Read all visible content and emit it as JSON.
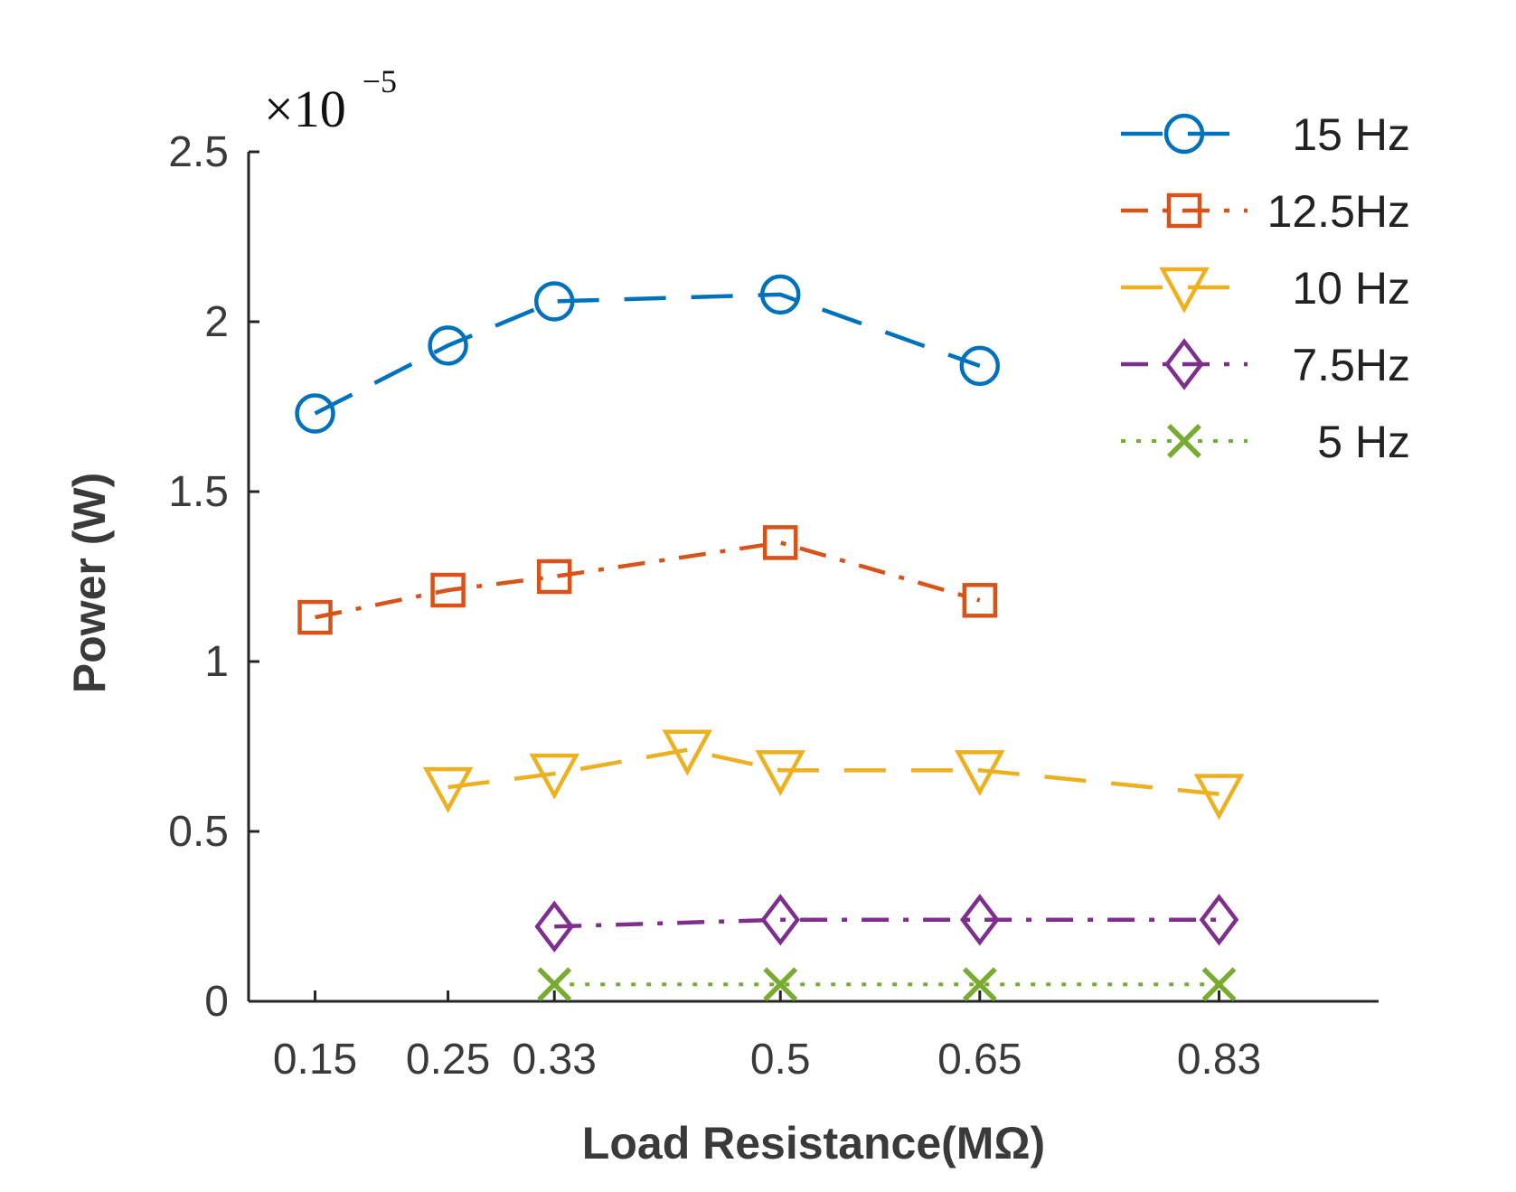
{
  "chart_data": {
    "type": "line",
    "title": "",
    "xlabel": "Load Resistance(MΩ)",
    "ylabel": "Power (W)",
    "y_multiplier": {
      "base": "×10",
      "exponent": "−5"
    },
    "ylim": [
      0,
      2.5
    ],
    "yticks": [
      "0",
      "0.5",
      "1",
      "1.5",
      "2",
      "2.5"
    ],
    "ytick_values": [
      0,
      0.5,
      1,
      1.5,
      2,
      2.5
    ],
    "xlim": [
      0.1,
      0.95
    ],
    "xticks": [
      "0.15",
      "0.25",
      "0.33",
      "0.5",
      "0.65",
      "0.83"
    ],
    "xtick_values": [
      0.15,
      0.25,
      0.33,
      0.5,
      0.65,
      0.83
    ],
    "grid": false,
    "legend_position": "top-right",
    "series": [
      {
        "name": "15 Hz",
        "color": "#0072BD",
        "marker": "circle",
        "dash": "long-dash",
        "x": [
          0.15,
          0.25,
          0.33,
          0.5,
          0.65
        ],
        "y": [
          1.73,
          1.93,
          2.06,
          2.08,
          1.87
        ]
      },
      {
        "name": "12.5Hz",
        "color": "#D95319",
        "marker": "square",
        "dash": "dash-dot",
        "x": [
          0.15,
          0.25,
          0.33,
          0.5,
          0.65
        ],
        "y": [
          1.13,
          1.21,
          1.25,
          1.35,
          1.18
        ]
      },
      {
        "name": "10 Hz",
        "color": "#EDB120",
        "marker": "triangle-down",
        "dash": "long-dash",
        "x": [
          0.25,
          0.33,
          0.43,
          0.5,
          0.65,
          0.83
        ],
        "y": [
          0.63,
          0.67,
          0.74,
          0.68,
          0.68,
          0.61
        ]
      },
      {
        "name": "7.5Hz",
        "color": "#7E2F8E",
        "marker": "diamond",
        "dash": "dash-dot",
        "x": [
          0.33,
          0.5,
          0.65,
          0.83
        ],
        "y": [
          0.22,
          0.24,
          0.24,
          0.24
        ]
      },
      {
        "name": "5 Hz",
        "color": "#77AC30",
        "marker": "x",
        "dash": "dotted",
        "x": [
          0.33,
          0.5,
          0.65,
          0.83
        ],
        "y": [
          0.05,
          0.05,
          0.05,
          0.05
        ]
      }
    ]
  }
}
